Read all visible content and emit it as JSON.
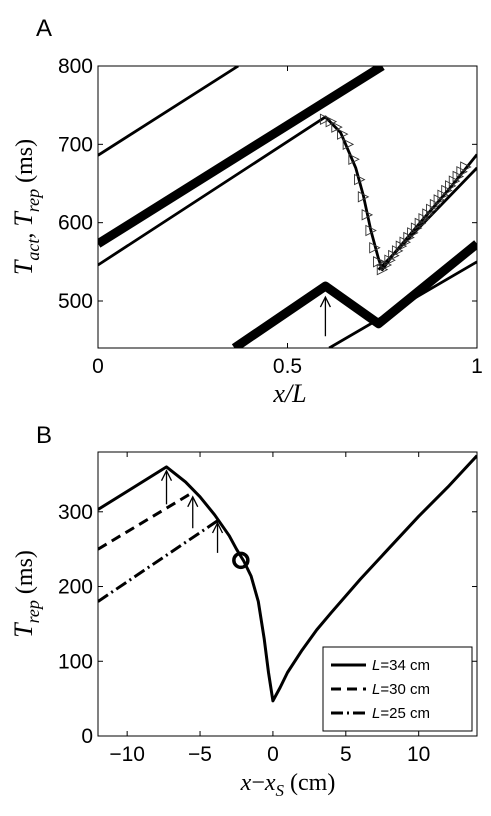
{
  "chart_data": [
    {
      "panel": "A",
      "type": "line",
      "xlabel": "x/L",
      "ylabel": "T_act, T_rep (ms)",
      "ylabel_parts": {
        "t1": "T",
        "s1": "act",
        "comma": ", ",
        "t2": "T",
        "s2": "rep",
        "unit": " (ms)"
      },
      "xlim": [
        0,
        1
      ],
      "ylim": [
        440,
        800
      ],
      "xticks": [
        0,
        0.5,
        1
      ],
      "xtick_labels": [
        "0",
        "0.5",
        "1"
      ],
      "yticks": [
        500,
        600,
        700,
        800
      ],
      "ytick_labels": [
        "500",
        "600",
        "700",
        "800"
      ],
      "series": [
        {
          "style": "thin",
          "points": [
            [
              0,
              686
            ],
            [
              0.37,
              800
            ]
          ]
        },
        {
          "style": "thick",
          "points": [
            [
              0,
              573
            ],
            [
              0.75,
              800
            ]
          ]
        },
        {
          "style": "thin",
          "points": [
            [
              0,
              546
            ],
            [
              0.6,
              735
            ],
            [
              0.64,
              715
            ],
            [
              0.68,
              670
            ],
            [
              0.7,
              635
            ],
            [
              0.72,
              590
            ],
            [
              0.74,
              554
            ],
            [
              0.75,
              540
            ],
            [
              0.78,
              560
            ],
            [
              0.85,
              600
            ],
            [
              0.93,
              645
            ],
            [
              1,
              687
            ]
          ]
        },
        {
          "style": "thin",
          "points": [
            [
              0.74,
              540
            ],
            [
              1,
              670
            ]
          ]
        },
        {
          "style": "thick",
          "points": [
            [
              0.36,
              440
            ],
            [
              0.6,
              519
            ],
            [
              0.74,
              471
            ],
            [
              1,
              573
            ]
          ]
        },
        {
          "style": "thin",
          "points": [
            [
              0.61,
              440
            ],
            [
              1,
              550
            ]
          ]
        }
      ],
      "markers": {
        "shape": "triangle-right",
        "points": [
          [
            0.6,
            732
          ],
          [
            0.615,
            729
          ],
          [
            0.63,
            722
          ],
          [
            0.645,
            713
          ],
          [
            0.66,
            700
          ],
          [
            0.675,
            681
          ],
          [
            0.69,
            655
          ],
          [
            0.7,
            633
          ],
          [
            0.71,
            610
          ],
          [
            0.72,
            590
          ],
          [
            0.73,
            568
          ],
          [
            0.74,
            550
          ],
          [
            0.75,
            540
          ],
          [
            0.76,
            546
          ],
          [
            0.77,
            552
          ],
          [
            0.78,
            558
          ],
          [
            0.79,
            564
          ],
          [
            0.8,
            570
          ],
          [
            0.81,
            575
          ],
          [
            0.82,
            581
          ],
          [
            0.83,
            587
          ],
          [
            0.84,
            593
          ],
          [
            0.85,
            599
          ],
          [
            0.86,
            605
          ],
          [
            0.87,
            611
          ],
          [
            0.88,
            617
          ],
          [
            0.89,
            623
          ],
          [
            0.9,
            629
          ],
          [
            0.91,
            635
          ],
          [
            0.92,
            641
          ],
          [
            0.93,
            647
          ],
          [
            0.94,
            653
          ],
          [
            0.95,
            659
          ],
          [
            0.96,
            665
          ],
          [
            0.97,
            671
          ]
        ]
      },
      "annotations": [
        {
          "type": "arrow-up",
          "x": 0.6,
          "y_from": 455,
          "y_to": 505
        }
      ]
    },
    {
      "panel": "B",
      "type": "line",
      "xlabel": "x−x_S (cm)",
      "xlabel_parts": {
        "a": "x",
        "op": "−",
        "b": "x",
        "sub": "S",
        "unit": " (cm)"
      },
      "ylabel": "T_rep (ms)",
      "ylabel_parts": {
        "t": "T",
        "sub": "rep",
        "unit": " (ms)"
      },
      "xlim": [
        -12,
        14
      ],
      "ylim": [
        0,
        380
      ],
      "xticks": [
        -10,
        -5,
        0,
        5,
        10
      ],
      "xtick_labels": [
        "−10",
        "−5",
        "0",
        "5",
        "10"
      ],
      "yticks": [
        0,
        100,
        200,
        300
      ],
      "ytick_labels": [
        "0",
        "100",
        "200",
        "300"
      ],
      "series": [
        {
          "name": "L=34 cm",
          "dash": "solid",
          "points": [
            [
              -12,
              303
            ],
            [
              -7.3,
              360
            ],
            [
              -6,
              340
            ],
            [
              -5,
              320
            ],
            [
              -4,
              296
            ],
            [
              -3,
              268
            ],
            [
              -2.5,
              250
            ],
            [
              -2,
              234
            ],
            [
              -1.5,
              214
            ],
            [
              -1,
              180
            ],
            [
              -0.6,
              130
            ],
            [
              -0.3,
              85
            ],
            [
              0,
              47
            ],
            [
              0.5,
              65
            ],
            [
              1,
              85
            ],
            [
              2,
              115
            ],
            [
              3,
              142
            ],
            [
              4,
              165
            ],
            [
              6,
              210
            ],
            [
              8,
              252
            ],
            [
              10,
              294
            ],
            [
              12,
              333
            ],
            [
              14,
              375
            ]
          ]
        },
        {
          "name": "L=30 cm",
          "dash": "dashed",
          "points": [
            [
              -12,
              250
            ],
            [
              -5.5,
              326
            ]
          ]
        },
        {
          "name": "L=25 cm",
          "dash": "dashdot",
          "points": [
            [
              -12,
              180
            ],
            [
              -3.8,
              288
            ]
          ]
        }
      ],
      "marker": {
        "shape": "circle",
        "x": -2.2,
        "y": 235
      },
      "annotations": [
        {
          "type": "arrow-up",
          "x": -7.3,
          "y_from": 310,
          "y_to": 355
        },
        {
          "type": "arrow-up",
          "x": -5.5,
          "y_from": 278,
          "y_to": 320
        },
        {
          "type": "arrow-up",
          "x": -3.8,
          "y_from": 245,
          "y_to": 285
        }
      ],
      "legend": {
        "position": "bottom-right",
        "entries": [
          {
            "name_italic": "L",
            "rest": "=34 cm",
            "dash": "solid"
          },
          {
            "name_italic": "L",
            "rest": "=30 cm",
            "dash": "dashed"
          },
          {
            "name_italic": "L",
            "rest": "=25 cm",
            "dash": "dashdot"
          }
        ]
      }
    }
  ]
}
